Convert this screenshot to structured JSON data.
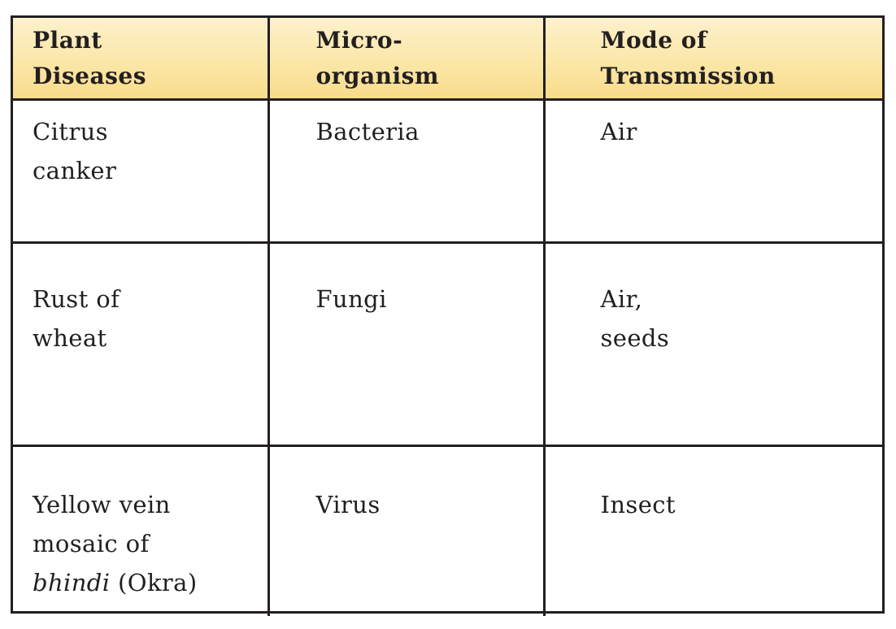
{
  "table": {
    "headers": [
      "Plant\nDiseases",
      "Micro-\norganism",
      "Mode of\nTransmission"
    ],
    "rows": [
      {
        "disease": "Citrus\ncanker",
        "microorganism": "Bacteria",
        "transmission": "Air"
      },
      {
        "disease": "Rust of\nwheat",
        "microorganism": "Fungi",
        "transmission": "Air,\nseeds"
      },
      {
        "disease_lines": "Yellow vein\nmosaic of",
        "disease_italic": "bhindi",
        "disease_suffix": " (Okra)",
        "microorganism": "Virus",
        "transmission": "Insect"
      }
    ]
  },
  "colors": {
    "border": "#231f20",
    "header_bg": "#fbe7a7"
  }
}
